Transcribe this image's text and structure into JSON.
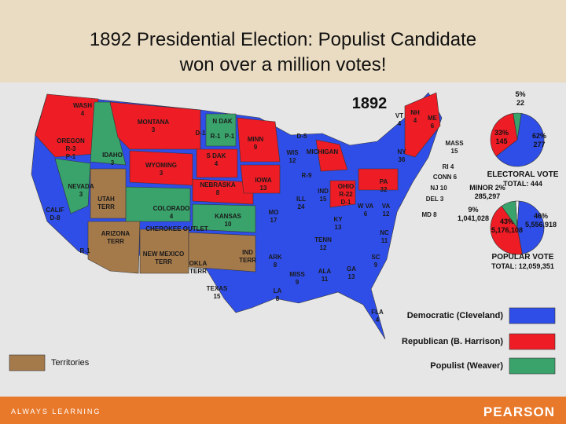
{
  "header": {
    "title_lines": [
      "1892 Presidential Election:  Populist Candidate",
      "won over a million votes!"
    ]
  },
  "map": {
    "year": "1892",
    "state_labels": [
      {
        "lines": [
          "WASH",
          "4"
        ]
      },
      {
        "lines": [
          "MONTANA",
          "3"
        ]
      },
      {
        "lines": [
          "OREGON",
          "R-3",
          "P-1"
        ]
      },
      {
        "lines": [
          "IDAHO",
          "3"
        ]
      },
      {
        "lines": [
          "N DAK"
        ]
      },
      {
        "lines": [
          "D-1"
        ]
      },
      {
        "lines": [
          "R-1"
        ]
      },
      {
        "lines": [
          "P-1"
        ]
      },
      {
        "lines": [
          "MINN",
          "9"
        ]
      },
      {
        "lines": [
          "WYOMING",
          "3"
        ]
      },
      {
        "lines": [
          "S DAK",
          "4"
        ]
      },
      {
        "lines": [
          "NEVADA",
          "3"
        ]
      },
      {
        "lines": [
          "UTAH",
          "TERR"
        ]
      },
      {
        "lines": [
          "COLORADO",
          "4"
        ]
      },
      {
        "lines": [
          "NEBRASKA",
          "8"
        ]
      },
      {
        "lines": [
          "IOWA",
          "13"
        ]
      },
      {
        "lines": [
          "WIS",
          "12"
        ]
      },
      {
        "lines": [
          "MICHIGAN"
        ]
      },
      {
        "lines": [
          "D-5"
        ]
      },
      {
        "lines": [
          "R-9"
        ]
      },
      {
        "lines": [
          "CALIF",
          "D-8"
        ]
      },
      {
        "lines": [
          "R-1"
        ]
      },
      {
        "lines": [
          "KANSAS",
          "10"
        ]
      },
      {
        "lines": [
          "CHEROKEE OUTLET"
        ]
      },
      {
        "lines": [
          "ARIZONA",
          "TERR"
        ]
      },
      {
        "lines": [
          "NEW MEXICO",
          "TERR"
        ]
      },
      {
        "lines": [
          "OKLA",
          "TERR"
        ]
      },
      {
        "lines": [
          "IND",
          "TERR"
        ]
      },
      {
        "lines": [
          "MO",
          "17"
        ]
      },
      {
        "lines": [
          "ILL",
          "24"
        ]
      },
      {
        "lines": [
          "IND",
          "15"
        ]
      },
      {
        "lines": [
          "OHIO",
          "R-22",
          "D-1"
        ]
      },
      {
        "lines": [
          "KY",
          "13"
        ]
      },
      {
        "lines": [
          "W VA",
          "6"
        ]
      },
      {
        "lines": [
          "VA",
          "12"
        ]
      },
      {
        "lines": [
          "PA",
          "32"
        ]
      },
      {
        "lines": [
          "NY",
          "36"
        ]
      },
      {
        "lines": [
          "VT",
          "4"
        ]
      },
      {
        "lines": [
          "NH",
          "4"
        ]
      },
      {
        "lines": [
          "ME",
          "6"
        ]
      },
      {
        "lines": [
          "MASS",
          "15"
        ]
      },
      {
        "lines": [
          "RI 4"
        ]
      },
      {
        "lines": [
          "CONN 6"
        ]
      },
      {
        "lines": [
          "NJ 10"
        ]
      },
      {
        "lines": [
          "DEL 3"
        ]
      },
      {
        "lines": [
          "MD 8"
        ]
      },
      {
        "lines": [
          "TENN",
          "12"
        ]
      },
      {
        "lines": [
          "NC",
          "11"
        ]
      },
      {
        "lines": [
          "ARK",
          "8"
        ]
      },
      {
        "lines": [
          "SC",
          "9"
        ]
      },
      {
        "lines": [
          "TEXAS",
          "15"
        ]
      },
      {
        "lines": [
          "LA",
          "8"
        ]
      },
      {
        "lines": [
          "MISS",
          "9"
        ]
      },
      {
        "lines": [
          "ALA",
          "11"
        ]
      },
      {
        "lines": [
          "GA",
          "13"
        ]
      },
      {
        "lines": [
          "FLA",
          "4"
        ]
      }
    ],
    "legend": [
      {
        "label": "Democratic (Cleveland)",
        "color": "#2f4ee8"
      },
      {
        "label": "Republican (B. Harrison)",
        "color": "#ee1c25"
      },
      {
        "label": "Populist (Weaver)",
        "color": "#3aa36b"
      },
      {
        "label": "Territories",
        "color": "#a57a4b"
      }
    ]
  },
  "electoral_vote": {
    "title": "ELECTORAL VOTE",
    "total": "TOTAL:  444",
    "slices": [
      {
        "value": 5,
        "value_label": "5%",
        "votes": "22",
        "color": "#3aa36b"
      },
      {
        "value": 62,
        "value_label": "62%",
        "votes": "277",
        "color": "#2f4ee8"
      },
      {
        "value": 33,
        "value_label": "33%",
        "votes": "145",
        "color": "#ee1c25"
      }
    ]
  },
  "popular_vote": {
    "title": "POPULAR  VOTE",
    "total": "TOTAL:  12,059,351",
    "slices": [
      {
        "value": 2,
        "value_label": "MINOR 2%",
        "votes": "285,297",
        "color": "#f3f3f3"
      },
      {
        "value": 46,
        "value_label": "46%",
        "votes": "5,556,918",
        "color": "#2f4ee8"
      },
      {
        "value": 43,
        "value_label": "43%",
        "votes": "5,176,108",
        "color": "#ee1c25"
      },
      {
        "value": 9,
        "value_label": "9%",
        "votes": "1,041,028",
        "color": "#3aa36b"
      }
    ]
  },
  "footer": {
    "left": "ALWAYS LEARNING",
    "right": "PEARSON"
  }
}
